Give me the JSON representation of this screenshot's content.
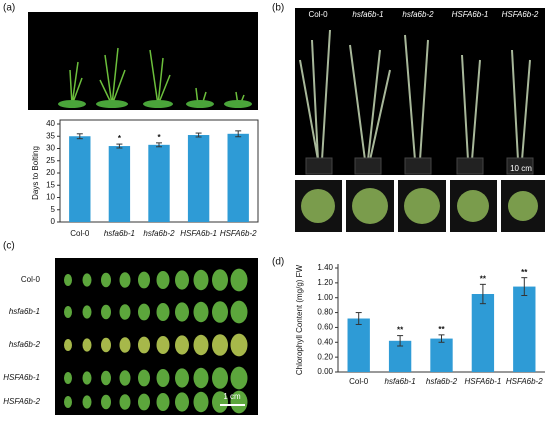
{
  "panel_labels": [
    "(a)",
    "(b)",
    "(c)",
    "(d)"
  ],
  "photo_b": {
    "column_labels": [
      "Col-0",
      "hsfa6b-1",
      "hsfa6b-2",
      "HSFA6b-1",
      "HSFA6b-2"
    ],
    "scale": "10 cm"
  },
  "photo_c": {
    "row_labels": [
      "Col-0",
      "hsfa6b-1",
      "hsfa6b-2",
      "HSFA6b-1",
      "HSFA6b-2"
    ],
    "scale": "1 cm"
  },
  "chart_data": [
    {
      "type": "bar",
      "y_label": "Days to Bolting",
      "categories": [
        "Col-0",
        "hsfa6b-1",
        "hsfa6b-2",
        "HSFA6b-1",
        "HSFA6b-2"
      ],
      "values": [
        35,
        31,
        31.5,
        35.5,
        36
      ],
      "errors": [
        1,
        0.8,
        0.8,
        0.8,
        1.2
      ],
      "significance": [
        null,
        "*",
        "*",
        null,
        null
      ],
      "color": "#2e9bd6",
      "ylim": [
        0,
        40
      ],
      "yticks": [
        0,
        5,
        10,
        15,
        20,
        25,
        30,
        35,
        40
      ]
    },
    {
      "type": "bar",
      "y_label": "Chlorophyll Content  (mg/g) FW",
      "categories": [
        "Col-0",
        "hsfa6b-1",
        "hsfa6b-2",
        "HSFA6b-1",
        "HSFA6b-2"
      ],
      "values": [
        0.72,
        0.42,
        0.45,
        1.05,
        1.15
      ],
      "errors": [
        0.08,
        0.07,
        0.05,
        0.13,
        0.12
      ],
      "significance": [
        null,
        "**",
        "**",
        "**",
        "**"
      ],
      "color": "#2e9bd6",
      "ylim": [
        0,
        1.4
      ],
      "yticks": [
        {
          "value": 0,
          "label": "0.00"
        },
        {
          "value": 0.2,
          "label": "0.20"
        },
        {
          "value": 0.4,
          "label": "0.40"
        },
        {
          "value": 0.6,
          "label": "0.60"
        },
        {
          "value": 0.8,
          "label": "0.80"
        },
        {
          "value": 1,
          "label": "1.00"
        },
        {
          "value": 1.2,
          "label": "1.20"
        },
        {
          "value": 1.4,
          "label": "1.40"
        }
      ]
    }
  ]
}
